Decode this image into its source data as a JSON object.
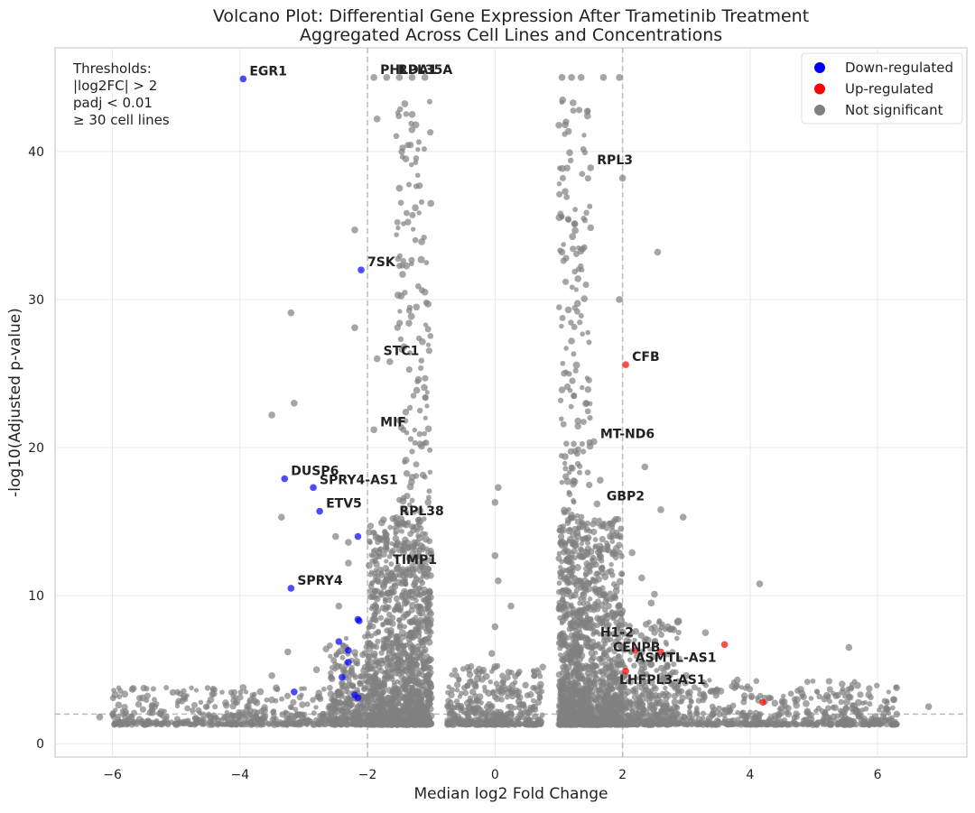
{
  "chart_data": {
    "type": "scatter",
    "title": "Volcano Plot: Differential Gene Expression After Trametinib Treatment",
    "subtitle": "Aggregated Across Cell Lines and Concentrations",
    "xlabel": "Median log2 Fold Change",
    "ylabel": "-log10(Adjusted p-value)",
    "xlim": [
      -6.9,
      7.4
    ],
    "ylim": [
      -0.9,
      47
    ],
    "xticks": [
      -6,
      -4,
      -2,
      0,
      2,
      4,
      6
    ],
    "yticks": [
      0,
      10,
      20,
      30,
      40
    ],
    "xtick_labels": [
      "−6",
      "−4",
      "−2",
      "0",
      "2",
      "4",
      "6"
    ],
    "ytick_labels": [
      "0",
      "10",
      "20",
      "30",
      "40"
    ],
    "grid": true,
    "thresholds": {
      "log2fc": 2,
      "padj_line": 2,
      "lines": [
        "Thresholds:",
        "|log2FC| > 2",
        "padj < 0.01",
        "≥ 30 cell lines"
      ]
    },
    "legend": {
      "placement": "top-right",
      "entries": [
        {
          "label": "Down-regulated",
          "color": "#0000ff"
        },
        {
          "label": "Up-regulated",
          "color": "#ff0000"
        },
        {
          "label": "Not significant",
          "color": "#808080"
        }
      ]
    },
    "colors": {
      "down": "#0000ff",
      "up": "#ff0000",
      "ns": "#808080"
    },
    "series": [
      {
        "name": "Down-regulated",
        "points": [
          [
            -3.95,
            44.9
          ],
          [
            -2.1,
            32.0
          ],
          [
            -3.3,
            17.9
          ],
          [
            -2.85,
            17.3
          ],
          [
            -2.75,
            15.7
          ],
          [
            -2.15,
            14.0
          ],
          [
            -3.2,
            10.5
          ],
          [
            -2.15,
            8.4
          ],
          [
            -2.13,
            8.3
          ],
          [
            -2.45,
            6.9
          ],
          [
            -2.3,
            6.3
          ],
          [
            -2.3,
            5.5
          ],
          [
            -2.4,
            4.5
          ],
          [
            -2.2,
            3.3
          ],
          [
            -3.15,
            3.5
          ],
          [
            -2.15,
            3.1
          ]
        ]
      },
      {
        "name": "Up-regulated",
        "points": [
          [
            2.05,
            25.6
          ],
          [
            2.6,
            6.2
          ],
          [
            2.2,
            6.3
          ],
          [
            2.05,
            4.9
          ],
          [
            3.6,
            6.7
          ],
          [
            4.2,
            2.8
          ]
        ]
      },
      {
        "name": "Not significant",
        "points": [
          [
            -1.9,
            45
          ],
          [
            -1.5,
            45
          ],
          [
            -1.3,
            45
          ],
          [
            -1.1,
            45
          ],
          [
            -1.7,
            45
          ],
          [
            1.05,
            45
          ],
          [
            1.2,
            45
          ],
          [
            1.35,
            45
          ],
          [
            1.7,
            45
          ],
          [
            1.95,
            45
          ],
          [
            1.5,
            38.9
          ],
          [
            -1.85,
            42.2
          ],
          [
            1.45,
            42.4
          ],
          [
            -1.3,
            42.5
          ],
          [
            1.1,
            41.8
          ],
          [
            -1.85,
            26.0
          ],
          [
            -1.65,
            25.8
          ],
          [
            -1.9,
            21.2
          ],
          [
            1.55,
            20.4
          ],
          [
            1.65,
            17.8
          ],
          [
            -1.6,
            15.2
          ],
          [
            1.6,
            16.2
          ],
          [
            1.75,
            14.6
          ],
          [
            -1.5,
            13.1
          ],
          [
            -1.7,
            13.8
          ],
          [
            -2.2,
            34.7
          ],
          [
            -3.2,
            29.1
          ],
          [
            -3.5,
            22.2
          ],
          [
            -3.15,
            23.0
          ],
          [
            -3.35,
            15.3
          ],
          [
            -2.2,
            28.1
          ],
          [
            2.0,
            38.2
          ],
          [
            2.55,
            33.2
          ],
          [
            1.95,
            30.0
          ],
          [
            2.35,
            18.7
          ],
          [
            2.6,
            15.8
          ],
          [
            2.95,
            15.3
          ],
          [
            4.15,
            10.8
          ],
          [
            5.55,
            6.5
          ],
          [
            6.8,
            2.5
          ],
          [
            3.8,
            4.3
          ],
          [
            3.3,
            7.5
          ],
          [
            0.05,
            17.3
          ],
          [
            0.0,
            16.3
          ],
          [
            0.0,
            12.7
          ],
          [
            0.05,
            11.0
          ],
          [
            0.25,
            9.3
          ],
          [
            0.0,
            7.9
          ],
          [
            0.0,
            5.2
          ],
          [
            -0.05,
            6.1
          ],
          [
            -5.7,
            1.8
          ],
          [
            -6.2,
            1.8
          ],
          [
            -5.45,
            1.5
          ],
          [
            -4.4,
            1.7
          ],
          [
            -4.05,
            2.8
          ],
          [
            -3.95,
            3.8
          ],
          [
            -3.5,
            4.6
          ],
          [
            -2.8,
            5.0
          ],
          [
            -2.65,
            6.4
          ],
          [
            -3.25,
            6.2
          ],
          [
            -2.45,
            9.3
          ],
          [
            -2.3,
            12.2
          ],
          [
            -2.5,
            14.0
          ],
          [
            -2.3,
            13.6
          ],
          [
            5.2,
            1.8
          ],
          [
            5.7,
            2.0
          ],
          [
            6.1,
            1.6
          ],
          [
            6.3,
            2.0
          ],
          [
            4.9,
            2.2
          ],
          [
            4.6,
            2.0
          ],
          [
            4.3,
            3.1
          ],
          [
            3.95,
            1.8
          ],
          [
            2.45,
            9.5
          ],
          [
            2.15,
            12.9
          ],
          [
            2.3,
            11.2
          ],
          [
            2.5,
            10.1
          ],
          [
            2.8,
            7.7
          ],
          [
            2.4,
            7.0
          ],
          [
            2.7,
            5.3
          ],
          [
            3.0,
            4.6
          ],
          [
            -1.4,
            39.5
          ],
          [
            -1.25,
            36.2
          ],
          [
            -1.15,
            33.9
          ],
          [
            -1.45,
            31.7
          ],
          [
            -1.1,
            30.5
          ],
          [
            -1.35,
            28.4
          ],
          [
            -1.2,
            24.6
          ],
          [
            -1.4,
            22.4
          ],
          [
            -1.15,
            20.1
          ],
          [
            -1.3,
            18.0
          ],
          [
            -1.05,
            16.3
          ],
          [
            -1.25,
            12.3
          ],
          [
            1.1,
            37.3
          ],
          [
            1.25,
            35.1
          ],
          [
            1.05,
            33.2
          ],
          [
            1.3,
            31.4
          ],
          [
            1.15,
            29.3
          ],
          [
            1.2,
            27.2
          ],
          [
            1.05,
            23.9
          ],
          [
            1.3,
            21.8
          ],
          [
            1.1,
            19.4
          ],
          [
            1.25,
            17.7
          ],
          [
            1.15,
            15.1
          ],
          [
            1.05,
            13.4
          ]
        ]
      }
    ],
    "annotations": [
      {
        "text": "EGR1",
        "x": -3.95,
        "y": 44.9
      },
      {
        "text": "PHLDA1",
        "x": -1.9,
        "y": 45.0
      },
      {
        "text": "RPL35A",
        "x": -1.62,
        "y": 45.0
      },
      {
        "text": "RPL3",
        "x": 1.5,
        "y": 38.9
      },
      {
        "text": "7SK",
        "x": -2.1,
        "y": 32.0
      },
      {
        "text": "STC1",
        "x": -1.85,
        "y": 26.0
      },
      {
        "text": "CFB",
        "x": 2.05,
        "y": 25.6
      },
      {
        "text": "MIF",
        "x": -1.9,
        "y": 21.2
      },
      {
        "text": "MT-ND6",
        "x": 1.55,
        "y": 20.4
      },
      {
        "text": "DUSP6",
        "x": -3.3,
        "y": 17.9
      },
      {
        "text": "SPRY4-AS1",
        "x": -2.85,
        "y": 17.3
      },
      {
        "text": "ETV5",
        "x": -2.75,
        "y": 15.7
      },
      {
        "text": "GBP2",
        "x": 1.65,
        "y": 16.2
      },
      {
        "text": "RPL38",
        "x": -1.6,
        "y": 15.2
      },
      {
        "text": "TIMP1",
        "x": -1.7,
        "y": 11.9
      },
      {
        "text": "SPRY4",
        "x": -3.2,
        "y": 10.5
      },
      {
        "text": "H1-2",
        "x": 1.55,
        "y": 7.0
      },
      {
        "text": "CENPB",
        "x": 1.75,
        "y": 6.0
      },
      {
        "text": "ASMTL-AS1",
        "x": 2.1,
        "y": 5.3
      },
      {
        "text": "LHFPL3-AS1",
        "x": 1.85,
        "y": 3.8
      }
    ]
  }
}
